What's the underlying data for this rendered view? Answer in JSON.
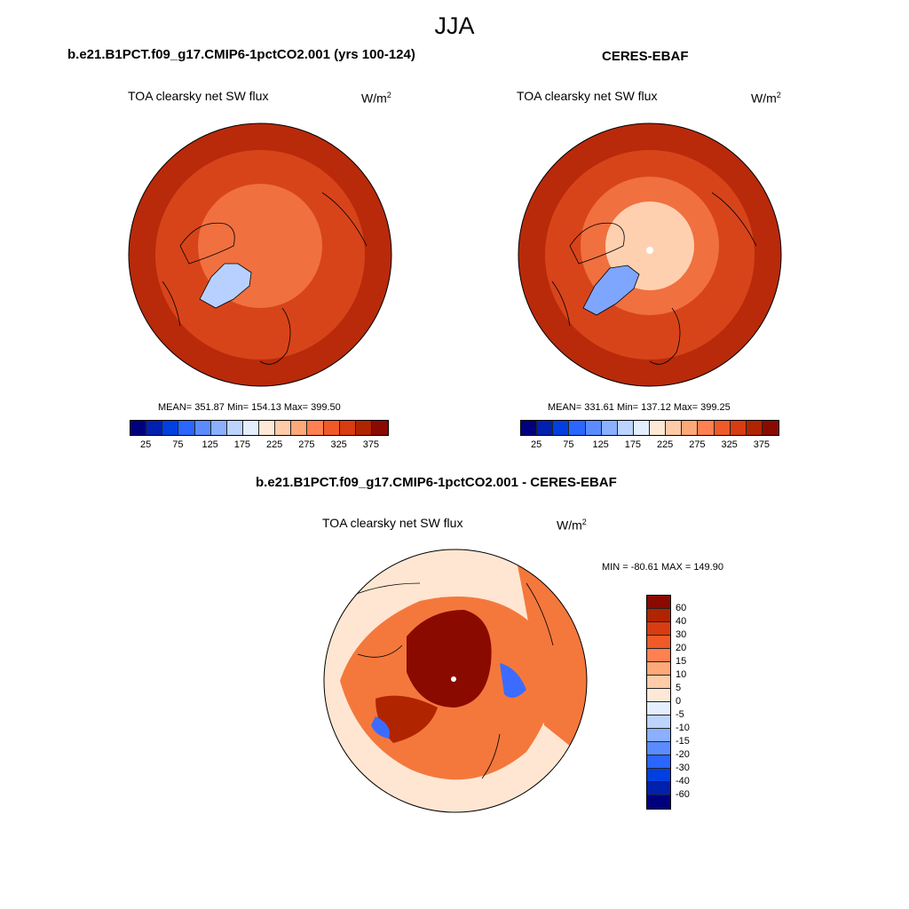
{
  "title": "JJA",
  "panels": {
    "model": {
      "title": "b.e21.B1PCT.f09_g17.CMIP6-1pctCO2.001 (yrs 100-124)",
      "variable": "TOA clearsky net SW flux",
      "units": "W/m",
      "units_exp": "2",
      "stats": "MEAN= 351.87  Min= 154.13  Max= 399.50"
    },
    "obs": {
      "title": "CERES-EBAF",
      "variable": "TOA clearsky net SW flux",
      "units": "W/m",
      "units_exp": "2",
      "stats": "MEAN= 331.61  Min= 137.12  Max= 399.25"
    },
    "diff": {
      "title": "b.e21.B1PCT.f09_g17.CMIP6-1pctCO2.001 - CERES-EBAF",
      "variable": "TOA clearsky net SW flux",
      "units": "W/m",
      "units_exp": "2",
      "stats": "MIN = -80.61 MAX = 149.90"
    }
  },
  "colorbar_abs": {
    "colors": [
      "#00007f",
      "#0020b0",
      "#0040e0",
      "#2a66ff",
      "#5a8cff",
      "#8ab0ff",
      "#bcd4ff",
      "#e4eeff",
      "#ffe8d6",
      "#ffcba8",
      "#ffa878",
      "#ff8050",
      "#f05a28",
      "#d83c10",
      "#b02400",
      "#8a0a00"
    ],
    "tick_labels": [
      "25",
      "75",
      "125",
      "175",
      "225",
      "275",
      "325",
      "375"
    ]
  },
  "colorbar_diff": {
    "colors": [
      "#8a0a00",
      "#b02400",
      "#d83c10",
      "#f05a28",
      "#ff8050",
      "#ffa878",
      "#ffcba8",
      "#ffe8d6",
      "#e4eeff",
      "#bcd4ff",
      "#8ab0ff",
      "#5a8cff",
      "#2a66ff",
      "#0040e0",
      "#0020b0",
      "#00007f"
    ],
    "tick_labels": [
      "60",
      "40",
      "30",
      "20",
      "15",
      "10",
      "5",
      "0",
      "-5",
      "-10",
      "-15",
      "-20",
      "-30",
      "-40",
      "-60"
    ]
  },
  "map_colors": {
    "outer": "#b82a0a",
    "mid": "#d8441a",
    "inner": "#f07040",
    "pale": "#ffd0b0",
    "ice": "#b8d0ff",
    "ice_dark": "#7ea6ff",
    "diff_base": "#ffe6d2",
    "diff_warm": "#f4783c",
    "diff_hot": "#b02400",
    "diff_core": "#8a0a00",
    "diff_cold": "#3c6cff"
  }
}
